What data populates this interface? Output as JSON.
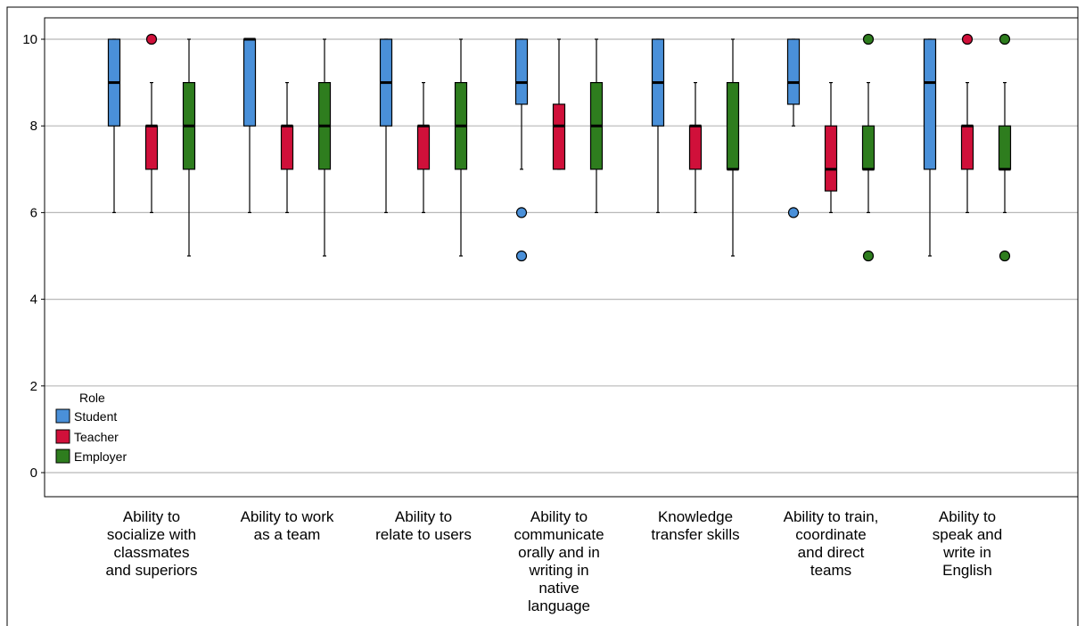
{
  "chart_data": {
    "type": "boxplot",
    "categories": [
      "Ability to\nsocialize with\nclassmates\nand superiors",
      "Ability to work\nas a team",
      "Ability to\nrelate to users",
      "Ability to\ncommunicate\norally and in\nwriting in\nnative\nlanguage",
      "Knowledge\ntransfer skills",
      "Ability to train,\ncoordinate\nand direct\nteams",
      "Ability to\nspeak and\nwrite in\nEnglish"
    ],
    "y_ticks": [
      "0",
      "2",
      "4",
      "6",
      "8",
      "10"
    ],
    "ylim": [
      -0.5,
      10.5
    ],
    "grid": true,
    "legend": {
      "title": "Role",
      "placement": "bottom-left",
      "items": [
        "Student",
        "Teacher",
        "Employer"
      ]
    },
    "series": [
      {
        "name": "Student",
        "color": "#4a90d9",
        "boxes": [
          {
            "min": 6,
            "q1": 8,
            "median": 9,
            "q3": 10,
            "max": 10,
            "outliers": []
          },
          {
            "min": 6,
            "q1": 8,
            "median": 10,
            "q3": 10,
            "max": 10,
            "outliers": []
          },
          {
            "min": 6,
            "q1": 8,
            "median": 9,
            "q3": 10,
            "max": 10,
            "outliers": []
          },
          {
            "min": 7,
            "q1": 8.5,
            "median": 9,
            "q3": 10,
            "max": 10,
            "outliers": [
              6,
              5
            ]
          },
          {
            "min": 6,
            "q1": 8,
            "median": 9,
            "q3": 10,
            "max": 10,
            "outliers": []
          },
          {
            "min": 8,
            "q1": 8.5,
            "median": 9,
            "q3": 10,
            "max": 10,
            "outliers": [
              6
            ]
          },
          {
            "min": 5,
            "q1": 7,
            "median": 9,
            "q3": 10,
            "max": 10,
            "outliers": []
          }
        ]
      },
      {
        "name": "Teacher",
        "color": "#d0103a",
        "boxes": [
          {
            "min": 6,
            "q1": 7,
            "median": 8,
            "q3": 8,
            "max": 9,
            "outliers": [
              10
            ]
          },
          {
            "min": 6,
            "q1": 7,
            "median": 8,
            "q3": 8,
            "max": 9,
            "outliers": []
          },
          {
            "min": 6,
            "q1": 7,
            "median": 8,
            "q3": 8,
            "max": 9,
            "outliers": []
          },
          {
            "min": 7,
            "q1": 7,
            "median": 8,
            "q3": 8.5,
            "max": 10,
            "outliers": []
          },
          {
            "min": 6,
            "q1": 7,
            "median": 8,
            "q3": 8,
            "max": 9,
            "outliers": []
          },
          {
            "min": 6,
            "q1": 6.5,
            "median": 7,
            "q3": 8,
            "max": 9,
            "outliers": []
          },
          {
            "min": 6,
            "q1": 7,
            "median": 8,
            "q3": 8,
            "max": 9,
            "outliers": [
              10
            ]
          }
        ]
      },
      {
        "name": "Employer",
        "color": "#2e7d1e",
        "boxes": [
          {
            "min": 5,
            "q1": 7,
            "median": 8,
            "q3": 9,
            "max": 10,
            "outliers": []
          },
          {
            "min": 5,
            "q1": 7,
            "median": 8,
            "q3": 9,
            "max": 10,
            "outliers": []
          },
          {
            "min": 5,
            "q1": 7,
            "median": 8,
            "q3": 9,
            "max": 10,
            "outliers": []
          },
          {
            "min": 6,
            "q1": 7,
            "median": 8,
            "q3": 9,
            "max": 10,
            "outliers": []
          },
          {
            "min": 5,
            "q1": 7,
            "median": 7,
            "q3": 9,
            "max": 10,
            "outliers": []
          },
          {
            "min": 6,
            "q1": 7,
            "median": 7,
            "q3": 8,
            "max": 9,
            "outliers": [
              10,
              5
            ]
          },
          {
            "min": 6,
            "q1": 7,
            "median": 7,
            "q3": 8,
            "max": 9,
            "outliers": [
              10,
              5
            ]
          }
        ]
      }
    ]
  }
}
